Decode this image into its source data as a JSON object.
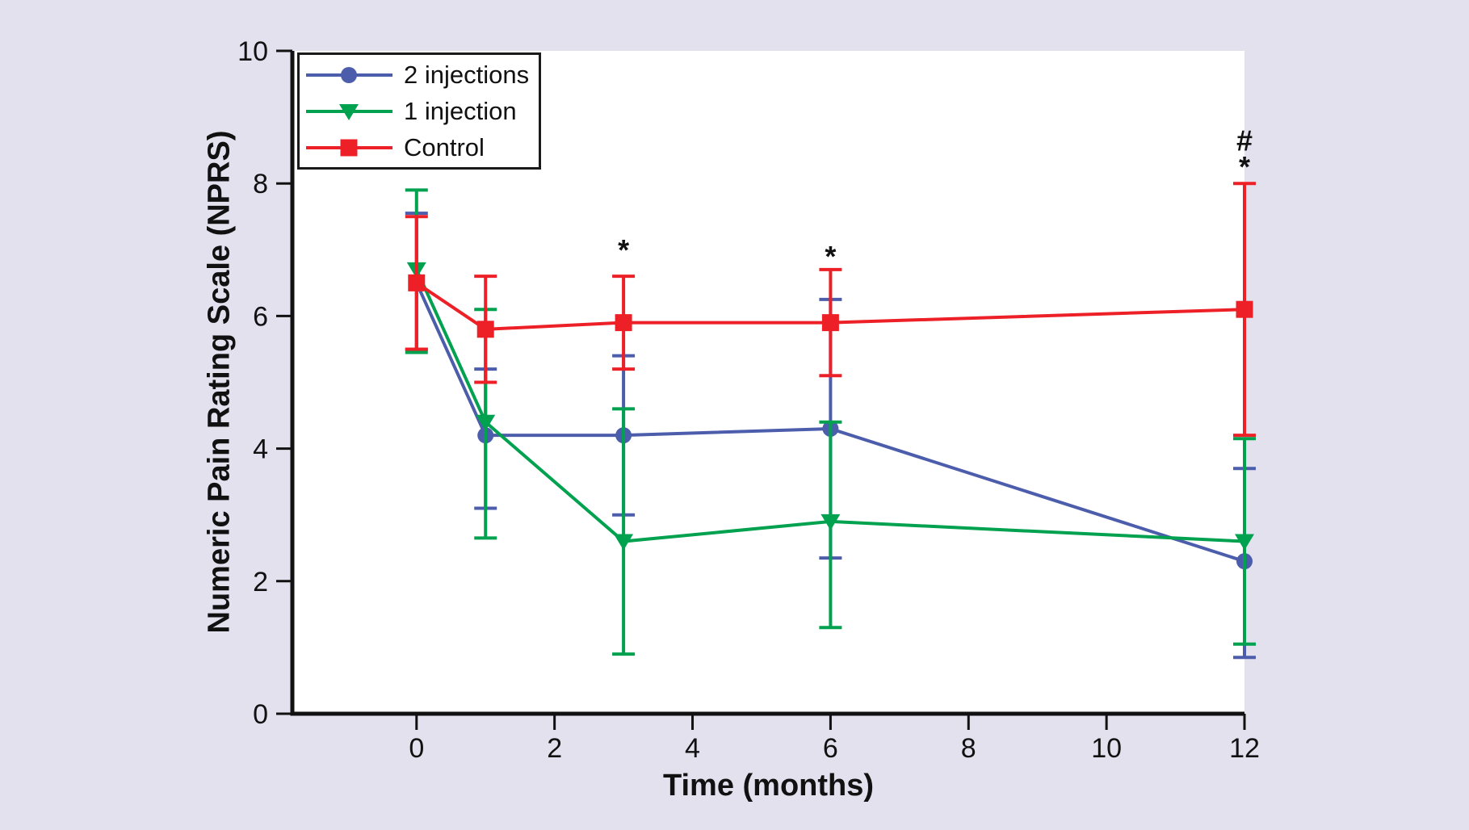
{
  "figure": {
    "background_color": "#E4E1EF",
    "plot_background": "#FFFFFF",
    "axis_color": "#111111"
  },
  "chart_data": {
    "type": "line",
    "title": "",
    "xlabel": "Time (months)",
    "ylabel": "Numeric Pain Rating Scale (NPRS)",
    "x": [
      0,
      1,
      3,
      6,
      12
    ],
    "x_ticks": [
      0,
      2,
      4,
      6,
      8,
      10,
      12
    ],
    "y_ticks": [
      0,
      2,
      4,
      6,
      8,
      10
    ],
    "xlim": [
      -1.8,
      12
    ],
    "ylim": [
      0,
      10
    ],
    "grid": false,
    "error_bars": true,
    "legend_position": "top-left",
    "series": [
      {
        "name": "2 injections",
        "color": "#4C5DAC",
        "marker": "circle",
        "values": [
          6.5,
          4.2,
          4.2,
          4.3,
          2.3
        ],
        "err_low": [
          5.5,
          3.1,
          3.0,
          2.35,
          0.85
        ],
        "err_high": [
          7.55,
          5.2,
          5.4,
          6.25,
          3.7
        ]
      },
      {
        "name": "1 injection",
        "color": "#00A14F",
        "marker": "triangle-down",
        "values": [
          6.7,
          4.4,
          2.6,
          2.9,
          2.6
        ],
        "err_low": [
          5.45,
          2.65,
          0.9,
          1.3,
          1.05
        ],
        "err_high": [
          7.9,
          6.1,
          4.6,
          4.4,
          4.15
        ]
      },
      {
        "name": "Control",
        "color": "#EC2026",
        "marker": "square",
        "values": [
          6.5,
          5.8,
          5.9,
          5.9,
          6.1
        ],
        "err_low": [
          5.5,
          5.0,
          5.2,
          5.1,
          4.2
        ],
        "err_high": [
          7.5,
          6.6,
          6.6,
          6.7,
          8.0
        ]
      }
    ],
    "annotations": [
      {
        "text": "*",
        "x": 3,
        "y": 7.0
      },
      {
        "text": "*",
        "x": 6,
        "y": 6.9
      },
      {
        "text": "#",
        "x": 12,
        "y": 8.65
      },
      {
        "text": "*",
        "x": 12,
        "y": 8.25
      }
    ]
  }
}
